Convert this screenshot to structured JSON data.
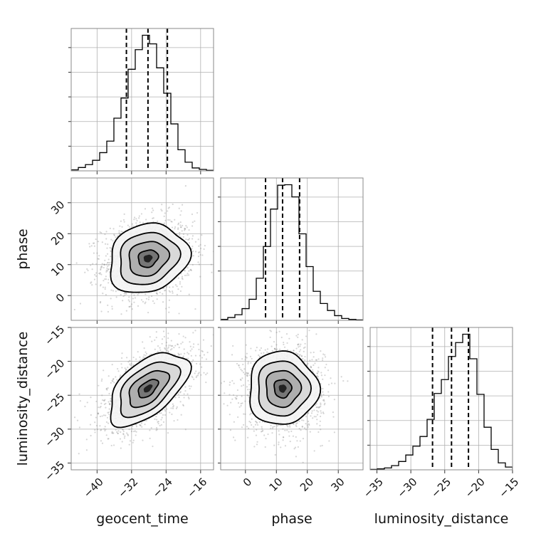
{
  "chart_data": {
    "type": "corner",
    "parameters": [
      "geocent_time",
      "phase",
      "luminosity_distance"
    ],
    "axis_labels": {
      "geocent_time": "geocent_time",
      "phase": "phase",
      "luminosity_distance": "luminosity_distance"
    },
    "ranges": {
      "geocent_time": [
        -46,
        -13
      ],
      "phase": [
        -8,
        38
      ],
      "luminosity_distance": [
        -36,
        -15
      ]
    },
    "ticks": {
      "geocent_time": [
        -40,
        -32,
        -24,
        -16
      ],
      "phase": [
        0,
        10,
        20,
        30
      ],
      "luminosity_distance": [
        -35,
        -30,
        -25,
        -20,
        -15
      ]
    },
    "tick_labels": {
      "geocent_time": [
        "−40",
        "−32",
        "−24",
        "−16"
      ],
      "phase": [
        "0",
        "10",
        "20",
        "30"
      ],
      "luminosity_distance": [
        "−35",
        "−30",
        "−25",
        "−20",
        "−15"
      ]
    },
    "quantiles": {
      "geocent_time": [
        -33.2,
        -28.2,
        -23.7
      ],
      "phase": [
        6.5,
        12.0,
        17.5
      ],
      "luminosity_distance": [
        -26.8,
        -24.0,
        -21.5
      ]
    },
    "marginals": {
      "geocent_time": {
        "bin_edges": [
          -46,
          -44.35,
          -42.7,
          -41.05,
          -39.4,
          -37.75,
          -36.1,
          -34.45,
          -32.8,
          -31.15,
          -29.5,
          -27.85,
          -26.2,
          -24.55,
          -22.9,
          -21.25,
          -19.6,
          -17.95,
          -16.3,
          -14.65,
          -13
        ],
        "counts": [
          2,
          7,
          13,
          22,
          38,
          62,
          110,
          152,
          212,
          253,
          283,
          265,
          215,
          162,
          98,
          44,
          18,
          6,
          3,
          1
        ]
      },
      "phase": {
        "bin_edges": [
          -8,
          -5.7,
          -3.4,
          -1.1,
          1.2,
          3.5,
          5.8,
          8.1,
          10.4,
          12.7,
          15,
          17.3,
          19.6,
          21.9,
          24.2,
          26.5,
          28.8,
          31.1,
          33.4,
          35.7,
          38
        ],
        "counts": [
          2,
          6,
          12,
          25,
          45,
          90,
          158,
          238,
          289,
          290,
          264,
          185,
          115,
          62,
          36,
          21,
          10,
          4,
          2,
          1
        ]
      },
      "luminosity_distance": {
        "bin_edges": [
          -36,
          -34.95,
          -33.9,
          -32.85,
          -31.8,
          -30.75,
          -29.7,
          -28.65,
          -27.6,
          -26.55,
          -25.5,
          -24.45,
          -23.4,
          -22.35,
          -21.3,
          -20.25,
          -19.2,
          -18.15,
          -17.1,
          -16.05,
          -15
        ],
        "counts": [
          1,
          2,
          4,
          9,
          18,
          32,
          51,
          72,
          109,
          165,
          195,
          245,
          275,
          293,
          240,
          163,
          92,
          44,
          15,
          6
        ]
      }
    },
    "joint": {
      "means": {
        "geocent_time": -28.2,
        "phase": 12.0,
        "luminosity_distance": -24.0
      },
      "sigmas": {
        "geocent_time": 4.6,
        "phase": 5.6,
        "luminosity_distance": 2.7
      },
      "correlations": {
        "geocent_time|phase": 0.15,
        "geocent_time|luminosity_distance": 0.55,
        "phase|luminosity_distance": 0.0
      },
      "contour_levels_sigma": [
        0.5,
        1.0,
        1.5,
        2.0
      ]
    }
  }
}
